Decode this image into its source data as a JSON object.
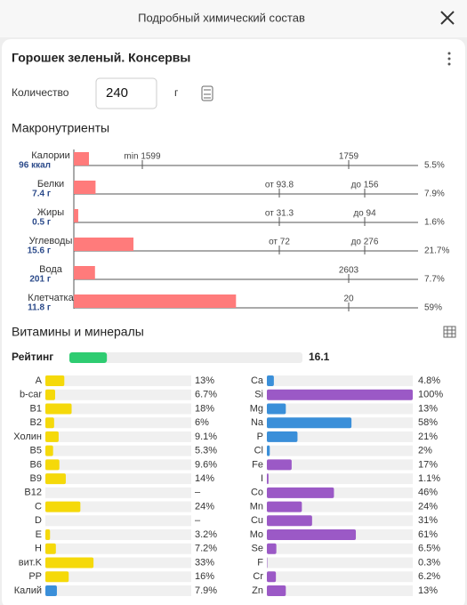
{
  "header": {
    "title": "Подробный химический состав"
  },
  "food": {
    "name": "Горошек зеленый. Консервы"
  },
  "quantity": {
    "label": "Количество",
    "value": "240",
    "unit": "г"
  },
  "macros": {
    "title": "Макронутриенты",
    "color": "#ff7b7b",
    "rows": [
      {
        "name": "Калории",
        "amount": "96 ккал",
        "percent": 5.5,
        "percent_label": "5.5%",
        "markers": [
          "min 1599",
          "1759"
        ]
      },
      {
        "name": "Белки",
        "amount": "7.4 г",
        "percent": 7.9,
        "percent_label": "7.9%",
        "markers": [
          "от 93.8",
          "до 156"
        ]
      },
      {
        "name": "Жиры",
        "amount": "0.5 г",
        "percent": 1.6,
        "percent_label": "1.6%",
        "markers": [
          "от 31.3",
          "до 94"
        ]
      },
      {
        "name": "Углеводы",
        "amount": "15.6 г",
        "percent": 21.7,
        "percent_label": "21.7%",
        "markers": [
          "от 72",
          "до 276"
        ]
      },
      {
        "name": "Вода",
        "amount": "201 г",
        "percent": 7.7,
        "percent_label": "7.7%",
        "markers": [
          "2603"
        ]
      },
      {
        "name": "Клетчатка",
        "amount": "11.8 г",
        "percent": 59,
        "percent_label": "59%",
        "markers": [
          "20"
        ]
      }
    ]
  },
  "vitamins": {
    "title": "Витамины и минералы",
    "rating": {
      "label": "Рейтинг",
      "value": 16.1,
      "color": "#2ecc71"
    },
    "left": [
      {
        "name": "A",
        "value": 13,
        "label": "13%",
        "color": "#f5d90a"
      },
      {
        "name": "b-car",
        "value": 6.7,
        "label": "6.7%",
        "color": "#f5d90a"
      },
      {
        "name": "B1",
        "value": 18,
        "label": "18%",
        "color": "#f5d90a"
      },
      {
        "name": "B2",
        "value": 6,
        "label": "6%",
        "color": "#f5d90a"
      },
      {
        "name": "Холин",
        "value": 9.1,
        "label": "9.1%",
        "color": "#f5d90a"
      },
      {
        "name": "B5",
        "value": 5.3,
        "label": "5.3%",
        "color": "#f5d90a"
      },
      {
        "name": "B6",
        "value": 9.6,
        "label": "9.6%",
        "color": "#f5d90a"
      },
      {
        "name": "B9",
        "value": 14,
        "label": "14%",
        "color": "#f5d90a"
      },
      {
        "name": "B12",
        "value": null,
        "label": "–",
        "color": "#f5d90a"
      },
      {
        "name": "C",
        "value": 24,
        "label": "24%",
        "color": "#f5d90a"
      },
      {
        "name": "D",
        "value": null,
        "label": "–",
        "color": "#f5d90a"
      },
      {
        "name": "E",
        "value": 3.2,
        "label": "3.2%",
        "color": "#f5d90a"
      },
      {
        "name": "H",
        "value": 7.2,
        "label": "7.2%",
        "color": "#f5d90a"
      },
      {
        "name": "вит.K",
        "value": 33,
        "label": "33%",
        "color": "#f5d90a"
      },
      {
        "name": "PP",
        "value": 16,
        "label": "16%",
        "color": "#f5d90a"
      },
      {
        "name": "Калий",
        "value": 7.9,
        "label": "7.9%",
        "color": "#3a8fd9"
      }
    ],
    "right": [
      {
        "name": "Ca",
        "value": 4.8,
        "label": "4.8%",
        "color": "#3a8fd9"
      },
      {
        "name": "Si",
        "value": 100,
        "label": "100%",
        "color": "#9b59c6"
      },
      {
        "name": "Mg",
        "value": 13,
        "label": "13%",
        "color": "#3a8fd9"
      },
      {
        "name": "Na",
        "value": 58,
        "label": "58%",
        "color": "#3a8fd9"
      },
      {
        "name": "P",
        "value": 21,
        "label": "21%",
        "color": "#3a8fd9"
      },
      {
        "name": "Cl",
        "value": 2,
        "label": "2%",
        "color": "#3a8fd9"
      },
      {
        "name": "Fe",
        "value": 17,
        "label": "17%",
        "color": "#9b59c6"
      },
      {
        "name": "I",
        "value": 1.1,
        "label": "1.1%",
        "color": "#9b59c6"
      },
      {
        "name": "Co",
        "value": 46,
        "label": "46%",
        "color": "#9b59c6"
      },
      {
        "name": "Mn",
        "value": 24,
        "label": "24%",
        "color": "#9b59c6"
      },
      {
        "name": "Cu",
        "value": 31,
        "label": "31%",
        "color": "#9b59c6"
      },
      {
        "name": "Mo",
        "value": 61,
        "label": "61%",
        "color": "#9b59c6"
      },
      {
        "name": "Se",
        "value": 6.5,
        "label": "6.5%",
        "color": "#9b59c6"
      },
      {
        "name": "F",
        "value": 0.3,
        "label": "0.3%",
        "color": "#9b59c6"
      },
      {
        "name": "Cr",
        "value": 6.2,
        "label": "6.2%",
        "color": "#9b59c6"
      },
      {
        "name": "Zn",
        "value": 13,
        "label": "13%",
        "color": "#9b59c6"
      }
    ]
  }
}
